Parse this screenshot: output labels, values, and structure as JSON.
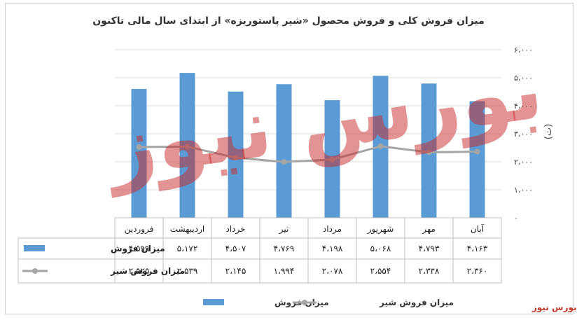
{
  "chart_data": {
    "type": "bar",
    "title": "میزان فروش کلی و فروش محصول «شیر پاستوریزه» از ابتدای سال مالی تاکنون",
    "unit_label": "(ت)",
    "categories": [
      "فروردین",
      "اردیبهشت",
      "خرداد",
      "تیر",
      "مرداد",
      "شهریور",
      "مهر",
      "آبان"
    ],
    "ylim": [
      0,
      6000
    ],
    "y_ticks": [
      "۰",
      "۱،۰۰۰",
      "۲،۰۰۰",
      "۳،۰۰۰",
      "۴،۰۰۰",
      "۵،۰۰۰",
      "۶،۰۰۰"
    ],
    "y_tick_values": [
      0,
      1000,
      2000,
      3000,
      4000,
      5000,
      6000
    ],
    "grid": true,
    "legend_position": "bottom",
    "series": [
      {
        "name": "میزان فروش",
        "kind": "bar",
        "color": "#5b9bd5",
        "values": [
          4599,
          5172,
          4507,
          4769,
          4198,
          5068,
          4793,
          4163
        ],
        "labels": [
          "۴،۵۹۹",
          "۵،۱۷۲",
          "۴،۵۰۷",
          "۴،۷۶۹",
          "۴،۱۹۸",
          "۵،۰۶۸",
          "۴،۷۹۳",
          "۴،۱۶۳"
        ]
      },
      {
        "name": "میزان فروش شیر",
        "kind": "line",
        "color": "#a5a5a5",
        "values": [
          2525,
          2539,
          2145,
          1994,
          2078,
          2554,
          2338,
          2360
        ],
        "labels": [
          "۲،۵۲۵",
          "۲،۵۳۹",
          "۲،۱۴۵",
          "۱،۹۹۴",
          "۲،۰۷۸",
          "۲،۵۵۴",
          "۲،۳۳۸",
          "۲،۳۶۰"
        ]
      }
    ]
  },
  "watermark": {
    "text": "بورس نیوز"
  },
  "source_label": "بورس نیوز"
}
